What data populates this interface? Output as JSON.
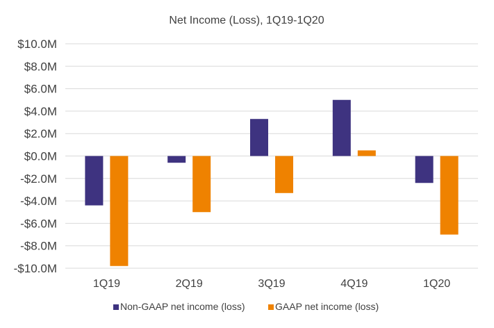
{
  "chart_data": {
    "type": "bar",
    "title": "Net Income (Loss), 1Q19-1Q20",
    "categories": [
      "1Q19",
      "2Q19",
      "3Q19",
      "4Q19",
      "1Q20"
    ],
    "series": [
      {
        "name": "Non-GAAP net income (loss)",
        "color": "#3e3380",
        "values": [
          -4.4,
          -0.6,
          3.3,
          5.0,
          -2.4
        ]
      },
      {
        "name": "GAAP net income (loss)",
        "color": "#ef8200",
        "values": [
          -9.8,
          -5.0,
          -3.3,
          0.5,
          -7.0
        ]
      }
    ],
    "ylim": [
      -10,
      10
    ],
    "yticks": [
      10,
      8,
      6,
      4,
      2,
      0,
      -2,
      -4,
      -6,
      -8,
      -10
    ],
    "ytick_labels": [
      "$10.0M",
      "$8.0M",
      "$6.0M",
      "$4.0M",
      "$2.0M",
      "$0.0M",
      "-$2.0M",
      "-$4.0M",
      "-$6.0M",
      "-$8.0M",
      "-$10.0M"
    ],
    "xlabel": "",
    "ylabel": "",
    "grid": true,
    "legend_position": "bottom"
  }
}
